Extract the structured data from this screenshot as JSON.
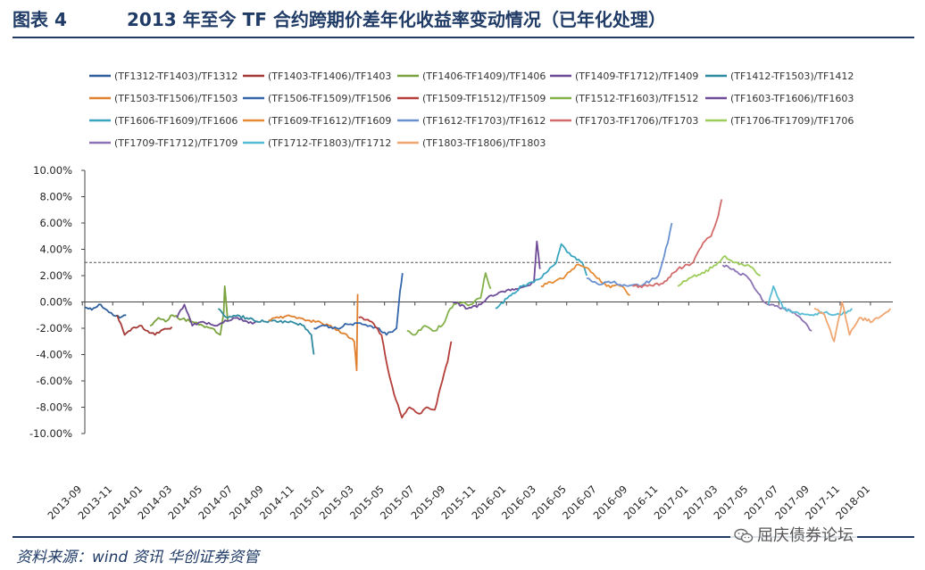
{
  "header": {
    "figure_label": "图表 4",
    "title": "2013 年至今 TF 合约跨期价差年化收益率变动情况（已年化处理）"
  },
  "footer": {
    "source": "资料来源：wind 资讯    华创证券资管",
    "watermark": "屈庆债券论坛",
    "watermark_icon": "wechat-icon"
  },
  "chart_data": {
    "type": "line",
    "title": "",
    "xlabel": "",
    "ylabel": "",
    "ylim": [
      -0.1,
      0.1
    ],
    "y_ticks": [
      "10.00%",
      "8.00%",
      "6.00%",
      "4.00%",
      "2.00%",
      "0.00%",
      "-2.00%",
      "-4.00%",
      "-6.00%",
      "-8.00%",
      "-10.00%"
    ],
    "x_ticks": [
      "2013-09",
      "2013-11",
      "2014-01",
      "2014-03",
      "2014-05",
      "2014-07",
      "2014-09",
      "2014-11",
      "2015-01",
      "2015-03",
      "2015-05",
      "2015-07",
      "2015-09",
      "2015-11",
      "2016-01",
      "2016-03",
      "2016-05",
      "2016-07",
      "2016-09",
      "2016-11",
      "2017-01",
      "2017-03",
      "2017-05",
      "2017-07",
      "2017-09",
      "2017-11",
      "2018-01"
    ],
    "x_range": [
      "2013-09-06",
      "2018-02-15"
    ],
    "reference_line": {
      "y": 0.03,
      "style": "dashed"
    },
    "grid": false,
    "legend_position": "top",
    "series": [
      {
        "name": "(TF1312-TF1403)/TF1312",
        "color": "#2e5f9c",
        "points": [
          [
            "2013-09-06",
            -0.004
          ],
          [
            "2013-09-20",
            -0.006
          ],
          [
            "2013-10-08",
            -0.002
          ],
          [
            "2013-10-25",
            -0.008
          ],
          [
            "2013-11-15",
            -0.012
          ],
          [
            "2013-11-28",
            -0.01
          ]
        ]
      },
      {
        "name": "(TF1403-TF1406)/TF1403",
        "color": "#a33a37",
        "points": [
          [
            "2013-11-10",
            -0.01
          ],
          [
            "2013-11-25",
            -0.025
          ],
          [
            "2013-12-10",
            -0.02
          ],
          [
            "2013-12-25",
            -0.018
          ],
          [
            "2014-01-10",
            -0.022
          ],
          [
            "2014-01-25",
            -0.025
          ],
          [
            "2014-02-10",
            -0.021
          ],
          [
            "2014-02-28",
            -0.019
          ]
        ]
      },
      {
        "name": "(TF1406-TF1409)/TF1406",
        "color": "#7aa23f",
        "points": [
          [
            "2014-01-15",
            -0.018
          ],
          [
            "2014-02-01",
            -0.012
          ],
          [
            "2014-02-15",
            -0.015
          ],
          [
            "2014-03-01",
            -0.01
          ],
          [
            "2014-03-20",
            -0.013
          ],
          [
            "2014-04-10",
            -0.015
          ],
          [
            "2014-05-01",
            -0.018
          ],
          [
            "2014-05-20",
            -0.02
          ],
          [
            "2014-06-05",
            -0.025
          ],
          [
            "2014-06-12",
            -0.008
          ],
          [
            "2014-06-14",
            0.012
          ],
          [
            "2014-06-20",
            -0.014
          ]
        ]
      },
      {
        "name": "(TF1409-TF1712)/TF1409",
        "color": "#6a4a95",
        "points": [
          [
            "2014-03-10",
            -0.012
          ],
          [
            "2014-03-25",
            -0.002
          ],
          [
            "2014-04-10",
            -0.018
          ],
          [
            "2014-05-01",
            -0.015
          ],
          [
            "2014-05-25",
            -0.018
          ],
          [
            "2014-06-15",
            -0.014
          ],
          [
            "2014-07-10",
            -0.012
          ],
          [
            "2014-08-01",
            -0.016
          ],
          [
            "2014-08-20",
            -0.015
          ]
        ]
      },
      {
        "name": "(TF1412-TF1503)/TF1412",
        "color": "#2f8a9f",
        "points": [
          [
            "2014-06-01",
            -0.005
          ],
          [
            "2014-06-20",
            -0.012
          ],
          [
            "2014-07-10",
            -0.01
          ],
          [
            "2014-08-01",
            -0.013
          ],
          [
            "2014-09-01",
            -0.015
          ],
          [
            "2014-10-01",
            -0.015
          ],
          [
            "2014-11-01",
            -0.016
          ],
          [
            "2014-11-20",
            -0.018
          ],
          [
            "2014-12-05",
            -0.025
          ],
          [
            "2014-12-10",
            -0.04
          ]
        ]
      },
      {
        "name": "(TF1503-TF1506)/TF1503",
        "color": "#e0802e",
        "points": [
          [
            "2014-09-10",
            -0.014
          ],
          [
            "2014-10-01",
            -0.012
          ],
          [
            "2014-10-20",
            -0.01
          ],
          [
            "2014-11-10",
            -0.012
          ],
          [
            "2014-12-01",
            -0.014
          ],
          [
            "2014-12-25",
            -0.016
          ],
          [
            "2015-01-20",
            -0.02
          ],
          [
            "2015-02-10",
            -0.024
          ],
          [
            "2015-03-01",
            -0.03
          ],
          [
            "2015-03-06",
            -0.052
          ],
          [
            "2015-03-08",
            0.006
          ]
        ]
      },
      {
        "name": "(TF1506-TF1509)/TF1506",
        "color": "#3566aa",
        "points": [
          [
            "2014-12-10",
            -0.02
          ],
          [
            "2015-01-01",
            -0.018
          ],
          [
            "2015-01-25",
            -0.02
          ],
          [
            "2015-02-15",
            -0.017
          ],
          [
            "2015-03-10",
            -0.016
          ],
          [
            "2015-04-01",
            -0.018
          ],
          [
            "2015-04-20",
            -0.02
          ],
          [
            "2015-05-05",
            -0.025
          ],
          [
            "2015-05-25",
            -0.02
          ],
          [
            "2015-06-01",
            0.008
          ],
          [
            "2015-06-06",
            0.022
          ]
        ]
      },
      {
        "name": "(TF1509-TF1512)/TF1509",
        "color": "#b33e3a",
        "points": [
          [
            "2015-03-10",
            -0.012
          ],
          [
            "2015-04-05",
            -0.015
          ],
          [
            "2015-04-25",
            -0.025
          ],
          [
            "2015-05-10",
            -0.055
          ],
          [
            "2015-05-20",
            -0.07
          ],
          [
            "2015-06-05",
            -0.088
          ],
          [
            "2015-06-20",
            -0.08
          ],
          [
            "2015-07-10",
            -0.085
          ],
          [
            "2015-07-25",
            -0.08
          ],
          [
            "2015-08-10",
            -0.082
          ],
          [
            "2015-08-25",
            -0.06
          ],
          [
            "2015-09-05",
            -0.045
          ],
          [
            "2015-09-12",
            -0.03
          ]
        ]
      },
      {
        "name": "(TF1512-TF1603)/TF1512",
        "color": "#84b04a",
        "points": [
          [
            "2015-06-15",
            -0.022
          ],
          [
            "2015-07-01",
            -0.025
          ],
          [
            "2015-07-20",
            -0.018
          ],
          [
            "2015-08-10",
            -0.022
          ],
          [
            "2015-08-30",
            -0.015
          ],
          [
            "2015-09-10",
            -0.005
          ],
          [
            "2015-09-25",
            0.0
          ],
          [
            "2015-10-20",
            -0.002
          ],
          [
            "2015-11-10",
            0.003
          ],
          [
            "2015-11-20",
            0.022
          ],
          [
            "2015-11-30",
            0.01
          ]
        ]
      },
      {
        "name": "(TF1603-TF1606)/TF1603",
        "color": "#6f4b98",
        "points": [
          [
            "2015-09-15",
            0.0
          ],
          [
            "2015-10-15",
            -0.005
          ],
          [
            "2015-11-10",
            -0.002
          ],
          [
            "2015-12-01",
            0.005
          ],
          [
            "2015-12-25",
            0.008
          ],
          [
            "2016-01-20",
            0.01
          ],
          [
            "2016-02-10",
            0.012
          ],
          [
            "2016-02-25",
            0.015
          ],
          [
            "2016-03-02",
            0.046
          ],
          [
            "2016-03-08",
            0.025
          ]
        ]
      },
      {
        "name": "(TF1606-TF1609)/TF1606",
        "color": "#3aa5c0",
        "points": [
          [
            "2015-12-10",
            -0.005
          ],
          [
            "2016-01-10",
            0.005
          ],
          [
            "2016-02-01",
            0.012
          ],
          [
            "2016-02-25",
            0.015
          ],
          [
            "2016-03-20",
            0.022
          ],
          [
            "2016-04-10",
            0.03
          ],
          [
            "2016-04-20",
            0.044
          ],
          [
            "2016-05-10",
            0.035
          ],
          [
            "2016-06-01",
            0.03
          ],
          [
            "2016-06-10",
            0.02
          ]
        ]
      },
      {
        "name": "(TF1609-TF1612)/TF1609",
        "color": "#e58a35",
        "points": [
          [
            "2016-03-10",
            0.012
          ],
          [
            "2016-03-30",
            0.015
          ],
          [
            "2016-04-25",
            0.018
          ],
          [
            "2016-05-20",
            0.028
          ],
          [
            "2016-06-10",
            0.026
          ],
          [
            "2016-07-01",
            0.018
          ],
          [
            "2016-07-20",
            0.012
          ],
          [
            "2016-08-20",
            0.012
          ],
          [
            "2016-09-05",
            0.005
          ]
        ]
      },
      {
        "name": "(TF1612-TF1703)/TF1612",
        "color": "#6a91cf",
        "points": [
          [
            "2016-06-10",
            0.018
          ],
          [
            "2016-07-01",
            0.014
          ],
          [
            "2016-08-01",
            0.015
          ],
          [
            "2016-09-01",
            0.012
          ],
          [
            "2016-10-01",
            0.013
          ],
          [
            "2016-11-01",
            0.02
          ],
          [
            "2016-11-20",
            0.045
          ],
          [
            "2016-11-28",
            0.06
          ]
        ]
      },
      {
        "name": "(TF1703-TF1706)/TF1703",
        "color": "#d26b6b",
        "points": [
          [
            "2016-09-10",
            0.012
          ],
          [
            "2016-10-10",
            0.012
          ],
          [
            "2016-11-10",
            0.014
          ],
          [
            "2016-12-10",
            0.025
          ],
          [
            "2017-01-10",
            0.03
          ],
          [
            "2017-01-30",
            0.045
          ],
          [
            "2017-02-15",
            0.05
          ],
          [
            "2017-03-01",
            0.065
          ],
          [
            "2017-03-08",
            0.078
          ]
        ]
      },
      {
        "name": "(TF1706-TF1709)/TF1706",
        "color": "#9ccc5a",
        "points": [
          [
            "2016-12-10",
            0.012
          ],
          [
            "2017-01-01",
            0.018
          ],
          [
            "2017-02-01",
            0.022
          ],
          [
            "2017-03-01",
            0.03
          ],
          [
            "2017-03-15",
            0.035
          ],
          [
            "2017-04-01",
            0.03
          ],
          [
            "2017-05-01",
            0.028
          ],
          [
            "2017-05-25",
            0.02
          ]
        ]
      },
      {
        "name": "(TF1709-TF1712)/TF1709",
        "color": "#8c74b4",
        "points": [
          [
            "2017-03-10",
            0.028
          ],
          [
            "2017-04-01",
            0.025
          ],
          [
            "2017-05-01",
            0.018
          ],
          [
            "2017-06-01",
            0.0
          ],
          [
            "2017-07-01",
            -0.004
          ],
          [
            "2017-08-01",
            -0.008
          ],
          [
            "2017-08-20",
            -0.015
          ],
          [
            "2017-09-05",
            -0.022
          ]
        ]
      },
      {
        "name": "(TF1712-TF1803)/TF1712",
        "color": "#58bcd4",
        "points": [
          [
            "2017-06-10",
            -0.002
          ],
          [
            "2017-06-20",
            0.012
          ],
          [
            "2017-07-10",
            -0.005
          ],
          [
            "2017-08-01",
            -0.008
          ],
          [
            "2017-09-01",
            -0.01
          ],
          [
            "2017-10-01",
            -0.008
          ],
          [
            "2017-11-01",
            -0.01
          ],
          [
            "2017-11-25",
            -0.005
          ]
        ]
      },
      {
        "name": "(TF1803-TF1806)/TF1803",
        "color": "#f0a670",
        "points": [
          [
            "2017-09-10",
            -0.005
          ],
          [
            "2017-10-01",
            -0.01
          ],
          [
            "2017-10-20",
            -0.03
          ],
          [
            "2017-11-05",
            0.0
          ],
          [
            "2017-11-20",
            -0.025
          ],
          [
            "2017-12-10",
            -0.012
          ],
          [
            "2018-01-05",
            -0.015
          ],
          [
            "2018-01-25",
            -0.01
          ],
          [
            "2018-02-10",
            -0.005
          ]
        ]
      }
    ]
  }
}
